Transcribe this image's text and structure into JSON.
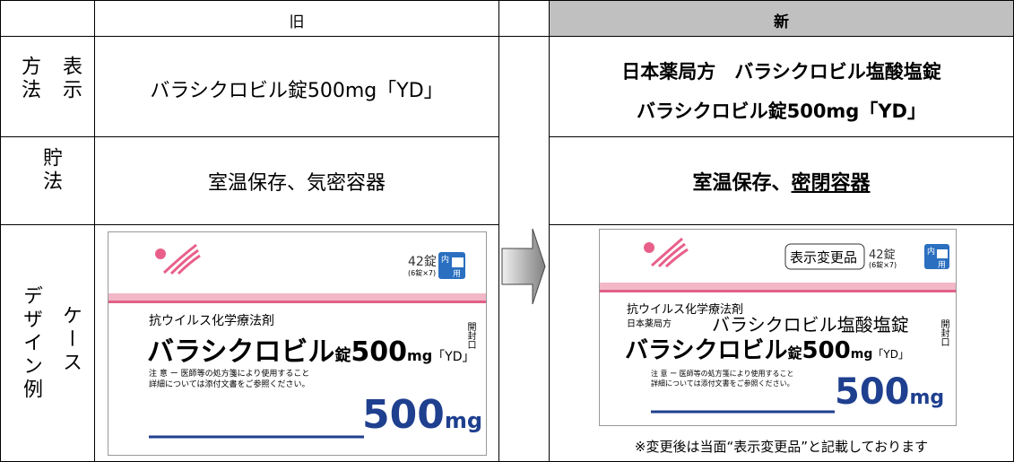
{
  "header": {
    "old": "旧",
    "new": "新"
  },
  "rows": [
    {
      "label": [
        "表示",
        "方法"
      ],
      "old": "バラシクロビル錠500mg「YD」",
      "new": [
        "日本薬局方　バラシクロビル塩酸塩錠",
        "バラシクロビル錠500mg「YD」"
      ]
    },
    {
      "label": [
        "貯法"
      ],
      "old": "室温保存、気密容器",
      "new": [
        "室温保存、",
        "密閉容器"
      ]
    },
    {
      "label": [
        "ケース",
        "デザイン例"
      ]
    }
  ],
  "old_package": {
    "count": "42錠",
    "pack": "(6錠×7)",
    "icon": [
      "内",
      "用"
    ],
    "category": "抗ウイルス化学療法剤",
    "name": "バラシクロビル",
    "form": "錠",
    "strength": "500",
    "unit": "mg",
    "maker": "「YD」",
    "caution": "注 意 ー 医師等の処方箋により使用すること",
    "detail": "詳細については添付文書をご参照ください。",
    "big_strength": "500",
    "big_unit": "mg",
    "opening": "開封口"
  },
  "new_package": {
    "badge": "表示変更品",
    "count": "42錠",
    "pack": "(6錠×7)",
    "icon": [
      "内",
      "用"
    ],
    "category": "抗ウイルス化学療法剤",
    "pharmacopoeia": "日本薬局方",
    "official_name": "バラシクロビル塩酸塩錠",
    "name": "バラシクロビル",
    "form": "錠",
    "strength": "500",
    "unit": "mg",
    "maker": "「YD」",
    "caution": "注 意 ー 医師等の処方箋により使用すること",
    "detail": "詳細については添付文書をご参照ください。",
    "big_strength": "500",
    "big_unit": "mg",
    "opening": "開封口"
  },
  "note": "※変更後は当面“表示変更品”と記載しております"
}
